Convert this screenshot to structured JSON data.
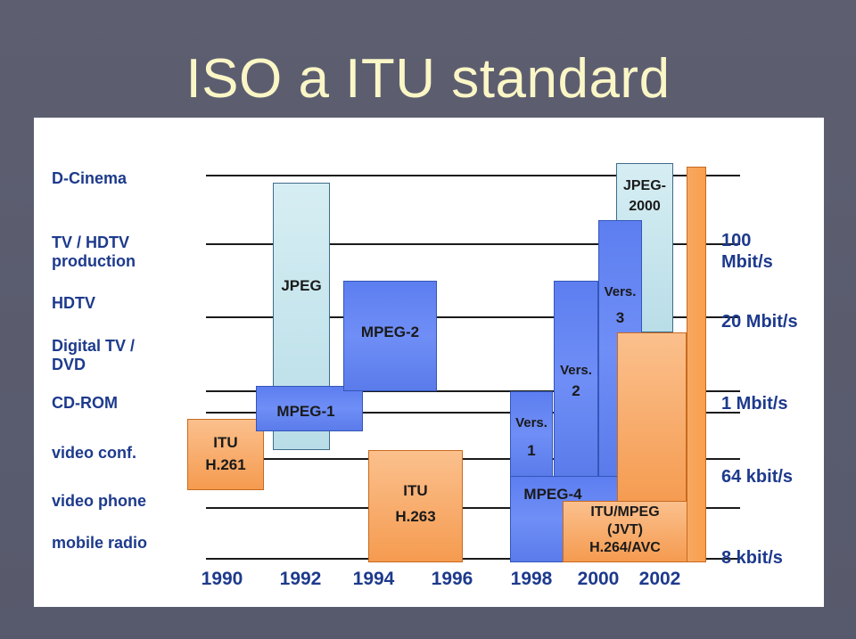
{
  "title": "ISO a ITU standard",
  "rows": {
    "d_cinema": "D-Cinema",
    "tv_hdtv_production": [
      "TV / HDTV",
      "production"
    ],
    "hdtv": "HDTV",
    "digital_tv_dvd": [
      "Digital TV /",
      "DVD"
    ],
    "cd_rom": "CD-ROM",
    "video_conf": "video conf.",
    "video_phone": "video phone",
    "mobile_radio": "mobile radio"
  },
  "rates": {
    "r100": [
      "100",
      "Mbit/s"
    ],
    "r20": "20 Mbit/s",
    "r1": "1 Mbit/s",
    "r64": "64 kbit/s",
    "r8": "8 kbit/s"
  },
  "years": [
    "1990",
    "1992",
    "1994",
    "1996",
    "1998",
    "2000",
    "2002"
  ],
  "standards": {
    "itu_h261": [
      "ITU",
      "H.261"
    ],
    "jpeg": "JPEG",
    "mpeg1": "MPEG-1",
    "mpeg2": "MPEG-2",
    "itu_h263": [
      "ITU",
      "H.263"
    ],
    "mpeg4_label": "MPEG-4",
    "vers1": [
      "Vers.",
      "1"
    ],
    "vers2": [
      "Vers.",
      "2"
    ],
    "vers3": [
      "Vers.",
      "3"
    ],
    "jpeg2000": [
      "JPEG-",
      "2000"
    ],
    "jvt": [
      "ITU/MPEG",
      "(JVT)",
      "H.264/AVC"
    ]
  },
  "colors": {
    "title": "#fbf6c6",
    "background": "#5a5c6e",
    "label_blue": "#1d3a8c"
  }
}
